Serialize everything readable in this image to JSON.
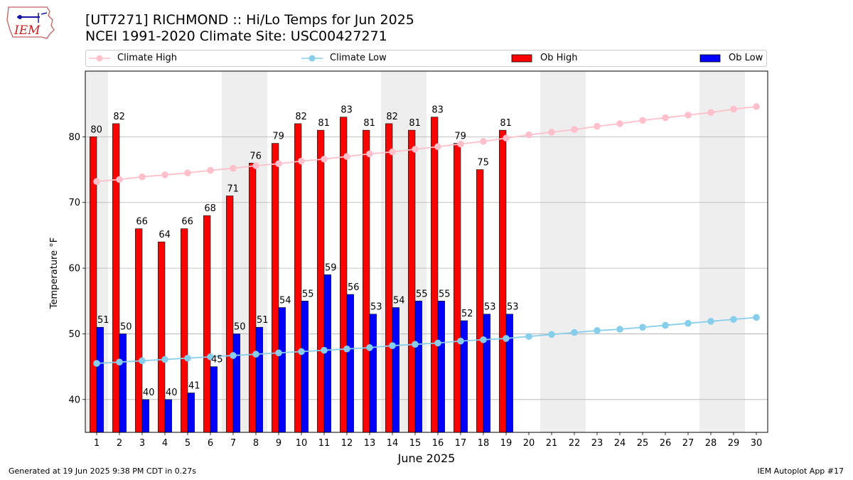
{
  "title_line1": "[UT7271] RICHMOND :: Hi/Lo Temps for Jun 2025",
  "title_line2": "NCEI 1991-2020 Climate Site: USC00427271",
  "logo_text": "IEM",
  "footer_left": "Generated at 19 Jun 2025 9:38 PM CDT in 0.27s",
  "footer_right": "IEM Autoplot App #17",
  "colors": {
    "ob_high": "#ff0000",
    "ob_low": "#0000ff",
    "climate_high": "#ffc0cb",
    "climate_low": "#87ceeb",
    "weekend_shade": "#eeeeee",
    "grid": "#b0b0b0"
  },
  "legend": [
    {
      "label": "Climate High",
      "style": "line-marker",
      "color": "#ffc0cb"
    },
    {
      "label": "Climate Low",
      "style": "line-marker",
      "color": "#87ceeb"
    },
    {
      "label": "Ob High",
      "style": "box",
      "color": "#ff0000"
    },
    {
      "label": "Ob Low",
      "style": "box",
      "color": "#0000ff"
    }
  ],
  "chart_data": {
    "type": "bar",
    "xlabel": "June 2025",
    "ylabel": "Temperature °F",
    "xlim": [
      0.5,
      30.5
    ],
    "ylim": [
      35,
      90
    ],
    "yticks": [
      40,
      50,
      60,
      70,
      80
    ],
    "grid": "horizontal",
    "legend_position": "top",
    "days": [
      1,
      2,
      3,
      4,
      5,
      6,
      7,
      8,
      9,
      10,
      11,
      12,
      13,
      14,
      15,
      16,
      17,
      18,
      19,
      20,
      21,
      22,
      23,
      24,
      25,
      26,
      27,
      28,
      29,
      30
    ],
    "shaded_days": [
      1,
      7,
      8,
      14,
      15,
      21,
      22,
      28,
      29
    ],
    "series": [
      {
        "name": "Ob High",
        "kind": "bar",
        "values": [
          80,
          82,
          66,
          64,
          66,
          68,
          71,
          76,
          79,
          82,
          81,
          83,
          81,
          82,
          81,
          83,
          79,
          75,
          81
        ]
      },
      {
        "name": "Ob Low",
        "kind": "bar",
        "values": [
          51,
          50,
          40,
          40,
          41,
          45,
          50,
          51,
          54,
          55,
          59,
          56,
          53,
          54,
          55,
          55,
          52,
          53,
          53
        ]
      },
      {
        "name": "Climate High",
        "kind": "line",
        "values": [
          73.2,
          73.5,
          73.9,
          74.2,
          74.5,
          74.9,
          75.2,
          75.6,
          75.9,
          76.3,
          76.6,
          77.0,
          77.4,
          77.7,
          78.1,
          78.5,
          78.9,
          79.3,
          79.8,
          80.3,
          80.7,
          81.1,
          81.6,
          82.0,
          82.5,
          82.9,
          83.3,
          83.7,
          84.2,
          84.6
        ]
      },
      {
        "name": "Climate Low",
        "kind": "line",
        "values": [
          45.5,
          45.7,
          45.9,
          46.1,
          46.3,
          46.5,
          46.7,
          46.9,
          47.1,
          47.3,
          47.5,
          47.7,
          47.9,
          48.2,
          48.4,
          48.6,
          48.9,
          49.1,
          49.3,
          49.6,
          49.9,
          50.2,
          50.5,
          50.7,
          51.0,
          51.3,
          51.6,
          51.9,
          52.2,
          52.5
        ]
      }
    ]
  }
}
